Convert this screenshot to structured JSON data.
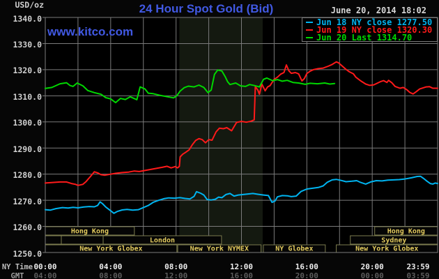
{
  "page": {
    "unit": "USD/oz",
    "title": "24 Hour Spot Gold (Bid)",
    "datetime": "June 20, 2014 18:02",
    "watermark": "www.kitco.com",
    "ny_time_row_label": "NY Time",
    "gmt_row_label": "GMT"
  },
  "legend": {
    "items": [
      {
        "label": "Jun 18 NY close 1277.50",
        "color": "#00b4f0"
      },
      {
        "label": "Jun 19 NY close 1320.30",
        "color": "#ff1a1a"
      },
      {
        "label": "Jun 20 Last 1314.70",
        "color": "#00d800"
      }
    ]
  },
  "colors": {
    "background": "#060606",
    "plot_background": "#000000",
    "grid": "#7b7b7b",
    "highlight_band": "#141910",
    "session_border": "#7c7c4e",
    "session_text": "#e3cb5e",
    "title_blue": "#4159e3",
    "axis_text": "#cfcfcf",
    "ny_tick_text": "#ededed",
    "gmt_tick_text": "#5c5c5c"
  },
  "chart_data": {
    "type": "line",
    "title": "24 Hour Spot Gold (Bid)",
    "ylabel": "USD/oz",
    "ylim": [
      1250,
      1340
    ],
    "y_tick_step": 10,
    "xlim_hours": [
      0,
      24
    ],
    "grid_hours_step": 2,
    "x_tick_hours": [
      0,
      4,
      8,
      12,
      16,
      20,
      23.98
    ],
    "x_ticks_ny_time": [
      "00:00",
      "04:00",
      "08:00",
      "12:00",
      "16:00",
      "20:00",
      "23:59"
    ],
    "x_ticks_gmt": [
      "04:00",
      "08:00",
      "12:00",
      "16:00",
      "20:00",
      "00:00",
      "03:59"
    ],
    "highlight_band_hours": [
      8.2,
      13.3
    ],
    "sessions": [
      {
        "row": 0,
        "start": 0,
        "end": 5.45,
        "label": "Hong Kong"
      },
      {
        "row": 0,
        "start": 20.15,
        "end": 24,
        "label": "Hong Kong"
      },
      {
        "row": 1,
        "start": 0,
        "end": 0.98,
        "label": ""
      },
      {
        "row": 1,
        "start": 0.98,
        "end": 3.54,
        "label": ""
      },
      {
        "row": 1,
        "start": 3.54,
        "end": 10.78,
        "label": "London"
      },
      {
        "row": 1,
        "start": 18.66,
        "end": 24,
        "label": "Sydney"
      },
      {
        "row": 2,
        "start": 0,
        "end": 8.05,
        "label": "New York Globex"
      },
      {
        "row": 2,
        "start": 8.1,
        "end": 13.2,
        "label": "New York NYMEX"
      },
      {
        "row": 2,
        "start": 13.34,
        "end": 17.13,
        "label": "NY Globex"
      },
      {
        "row": 2,
        "start": 17.8,
        "end": 24,
        "label": "New York Globex"
      }
    ],
    "series": [
      {
        "name": "Jun 18 NY close 1277.50",
        "color": "#00b4f0",
        "points": [
          [
            0,
            1266.4
          ],
          [
            0.3,
            1266.2
          ],
          [
            0.65,
            1266.8
          ],
          [
            1.05,
            1267.2
          ],
          [
            1.4,
            1267.0
          ],
          [
            1.7,
            1267.3
          ],
          [
            2.0,
            1267.1
          ],
          [
            2.35,
            1267.4
          ],
          [
            2.7,
            1267.6
          ],
          [
            3.0,
            1267.5
          ],
          [
            3.2,
            1268.0
          ],
          [
            3.35,
            1269.4
          ],
          [
            3.5,
            1268.7
          ],
          [
            3.7,
            1267.4
          ],
          [
            3.95,
            1266.2
          ],
          [
            4.2,
            1265.0
          ],
          [
            4.4,
            1265.7
          ],
          [
            4.7,
            1266.3
          ],
          [
            5.0,
            1266.5
          ],
          [
            5.35,
            1266.2
          ],
          [
            5.7,
            1266.4
          ],
          [
            6.0,
            1267.2
          ],
          [
            6.3,
            1268.0
          ],
          [
            6.6,
            1269.2
          ],
          [
            6.95,
            1270.0
          ],
          [
            7.25,
            1270.6
          ],
          [
            7.55,
            1270.9
          ],
          [
            7.9,
            1270.8
          ],
          [
            8.25,
            1271.0
          ],
          [
            8.55,
            1270.7
          ],
          [
            8.85,
            1270.5
          ],
          [
            9.1,
            1271.5
          ],
          [
            9.25,
            1273.3
          ],
          [
            9.5,
            1272.7
          ],
          [
            9.7,
            1272.0
          ],
          [
            9.9,
            1270.3
          ],
          [
            10.15,
            1270.1
          ],
          [
            10.4,
            1270.4
          ],
          [
            10.6,
            1271.2
          ],
          [
            10.8,
            1271.0
          ],
          [
            11.05,
            1272.2
          ],
          [
            11.3,
            1272.6
          ],
          [
            11.55,
            1271.6
          ],
          [
            11.8,
            1272.0
          ],
          [
            12.1,
            1272.2
          ],
          [
            12.4,
            1272.4
          ],
          [
            12.7,
            1272.6
          ],
          [
            13.0,
            1272.3
          ],
          [
            13.35,
            1272.0
          ],
          [
            13.65,
            1271.8
          ],
          [
            13.87,
            1269.2
          ],
          [
            14.05,
            1269.7
          ],
          [
            14.2,
            1271.3
          ],
          [
            14.5,
            1271.8
          ],
          [
            14.8,
            1271.7
          ],
          [
            15.05,
            1271.4
          ],
          [
            15.35,
            1271.6
          ],
          [
            15.65,
            1273.4
          ],
          [
            16.0,
            1274.3
          ],
          [
            16.35,
            1274.6
          ],
          [
            16.7,
            1274.9
          ],
          [
            17.0,
            1275.5
          ],
          [
            17.25,
            1276.9
          ],
          [
            17.55,
            1277.8
          ],
          [
            17.8,
            1278.0
          ],
          [
            18.1,
            1277.6
          ],
          [
            18.4,
            1277.1
          ],
          [
            18.75,
            1277.3
          ],
          [
            19.05,
            1277.5
          ],
          [
            19.3,
            1276.8
          ],
          [
            19.6,
            1276.2
          ],
          [
            19.9,
            1277.0
          ],
          [
            20.25,
            1277.5
          ],
          [
            20.6,
            1277.4
          ],
          [
            20.95,
            1277.7
          ],
          [
            21.3,
            1277.8
          ],
          [
            21.65,
            1277.9
          ],
          [
            21.95,
            1278.1
          ],
          [
            22.4,
            1278.6
          ],
          [
            22.75,
            1279.1
          ],
          [
            22.95,
            1279.2
          ],
          [
            23.15,
            1278.3
          ],
          [
            23.35,
            1277.3
          ],
          [
            23.55,
            1276.4
          ],
          [
            23.7,
            1276.2
          ],
          [
            23.85,
            1276.6
          ],
          [
            24,
            1276.4
          ]
        ]
      },
      {
        "name": "Jun 19 NY close 1320.30",
        "color": "#ff1a1a",
        "points": [
          [
            0,
            1276.6
          ],
          [
            0.45,
            1276.8
          ],
          [
            0.9,
            1277.0
          ],
          [
            1.3,
            1277.0
          ],
          [
            1.6,
            1276.4
          ],
          [
            1.85,
            1276.1
          ],
          [
            2.0,
            1275.7
          ],
          [
            2.3,
            1276.1
          ],
          [
            2.5,
            1277.2
          ],
          [
            2.75,
            1279.0
          ],
          [
            3.0,
            1280.9
          ],
          [
            3.2,
            1280.5
          ],
          [
            3.4,
            1279.8
          ],
          [
            3.65,
            1279.6
          ],
          [
            4.0,
            1280.0
          ],
          [
            4.3,
            1280.3
          ],
          [
            4.7,
            1280.6
          ],
          [
            5.1,
            1280.8
          ],
          [
            5.45,
            1281.2
          ],
          [
            5.75,
            1281.0
          ],
          [
            6.1,
            1281.4
          ],
          [
            6.45,
            1281.8
          ],
          [
            6.8,
            1282.2
          ],
          [
            7.15,
            1282.6
          ],
          [
            7.45,
            1283.0
          ],
          [
            7.7,
            1282.4
          ],
          [
            7.95,
            1282.9
          ],
          [
            8.1,
            1282.4
          ],
          [
            8.2,
            1283.0
          ],
          [
            8.25,
            1286.6
          ],
          [
            8.4,
            1287.6
          ],
          [
            8.6,
            1288.4
          ],
          [
            8.8,
            1289.3
          ],
          [
            9.0,
            1291.3
          ],
          [
            9.2,
            1292.9
          ],
          [
            9.4,
            1293.6
          ],
          [
            9.6,
            1293.2
          ],
          [
            9.8,
            1292.0
          ],
          [
            10.0,
            1293.2
          ],
          [
            10.2,
            1293.0
          ],
          [
            10.45,
            1296.2
          ],
          [
            10.65,
            1297.6
          ],
          [
            10.9,
            1297.4
          ],
          [
            11.1,
            1297.8
          ],
          [
            11.4,
            1296.6
          ],
          [
            11.7,
            1299.8
          ],
          [
            12.0,
            1300.2
          ],
          [
            12.3,
            1299.9
          ],
          [
            12.6,
            1300.3
          ],
          [
            12.78,
            1300.8
          ],
          [
            12.85,
            1313.5
          ],
          [
            13.0,
            1312.2
          ],
          [
            13.1,
            1310.6
          ],
          [
            13.25,
            1314.5
          ],
          [
            13.45,
            1311.9
          ],
          [
            13.6,
            1313.4
          ],
          [
            13.75,
            1313.9
          ],
          [
            14.0,
            1316.3
          ],
          [
            14.2,
            1317.1
          ],
          [
            14.4,
            1318.3
          ],
          [
            14.6,
            1318.9
          ],
          [
            14.75,
            1321.8
          ],
          [
            14.9,
            1319.6
          ],
          [
            15.05,
            1318.6
          ],
          [
            15.3,
            1318.9
          ],
          [
            15.5,
            1318.4
          ],
          [
            15.7,
            1315.7
          ],
          [
            15.85,
            1316.6
          ],
          [
            16.0,
            1318.5
          ],
          [
            16.2,
            1319.4
          ],
          [
            16.4,
            1320.0
          ],
          [
            16.7,
            1320.4
          ],
          [
            17.0,
            1320.6
          ],
          [
            17.3,
            1321.3
          ],
          [
            17.55,
            1322.0
          ],
          [
            17.8,
            1323.0
          ],
          [
            17.95,
            1322.6
          ],
          [
            18.2,
            1321.2
          ],
          [
            18.4,
            1320.1
          ],
          [
            18.6,
            1319.2
          ],
          [
            18.85,
            1318.4
          ],
          [
            19.0,
            1317.1
          ],
          [
            19.3,
            1315.7
          ],
          [
            19.6,
            1314.5
          ],
          [
            19.85,
            1314.0
          ],
          [
            20.1,
            1314.2
          ],
          [
            20.5,
            1315.4
          ],
          [
            20.7,
            1315.8
          ],
          [
            20.9,
            1315.1
          ],
          [
            21.0,
            1315.9
          ],
          [
            21.2,
            1315.0
          ],
          [
            21.4,
            1313.6
          ],
          [
            21.7,
            1312.9
          ],
          [
            21.9,
            1313.2
          ],
          [
            22.1,
            1312.4
          ],
          [
            22.3,
            1311.3
          ],
          [
            22.5,
            1310.7
          ],
          [
            22.7,
            1311.6
          ],
          [
            22.9,
            1312.6
          ],
          [
            23.1,
            1313.0
          ],
          [
            23.3,
            1313.4
          ],
          [
            23.5,
            1313.5
          ],
          [
            23.7,
            1312.9
          ],
          [
            24,
            1312.9
          ]
        ]
      },
      {
        "name": "Jun 20 Last 1314.70",
        "color": "#00d800",
        "points": [
          [
            0,
            1312.8
          ],
          [
            0.4,
            1313.2
          ],
          [
            0.9,
            1314.6
          ],
          [
            1.3,
            1315.0
          ],
          [
            1.5,
            1314.0
          ],
          [
            1.7,
            1313.6
          ],
          [
            1.95,
            1314.9
          ],
          [
            2.3,
            1313.8
          ],
          [
            2.6,
            1312.0
          ],
          [
            3.0,
            1311.2
          ],
          [
            3.4,
            1310.6
          ],
          [
            3.7,
            1309.3
          ],
          [
            4.0,
            1308.8
          ],
          [
            4.3,
            1307.4
          ],
          [
            4.6,
            1309.0
          ],
          [
            4.9,
            1308.6
          ],
          [
            5.2,
            1309.6
          ],
          [
            5.6,
            1308.5
          ],
          [
            5.8,
            1313.4
          ],
          [
            6.1,
            1312.6
          ],
          [
            6.3,
            1311.0
          ],
          [
            6.6,
            1310.8
          ],
          [
            7.0,
            1310.2
          ],
          [
            7.5,
            1309.6
          ],
          [
            7.85,
            1309.2
          ],
          [
            8.05,
            1310.0
          ],
          [
            8.25,
            1311.8
          ],
          [
            8.5,
            1313.1
          ],
          [
            8.75,
            1313.7
          ],
          [
            9.1,
            1313.4
          ],
          [
            9.4,
            1314.1
          ],
          [
            9.7,
            1313.2
          ],
          [
            9.95,
            1311.2
          ],
          [
            10.15,
            1312.2
          ],
          [
            10.35,
            1318.2
          ],
          [
            10.55,
            1319.9
          ],
          [
            10.8,
            1319.5
          ],
          [
            11.0,
            1317.4
          ],
          [
            11.15,
            1315.4
          ],
          [
            11.3,
            1314.3
          ],
          [
            11.65,
            1314.9
          ],
          [
            11.95,
            1313.8
          ],
          [
            12.25,
            1313.6
          ],
          [
            12.5,
            1314.3
          ],
          [
            12.8,
            1313.9
          ],
          [
            13.1,
            1313.4
          ],
          [
            13.35,
            1316.3
          ],
          [
            13.55,
            1316.8
          ],
          [
            13.9,
            1315.8
          ],
          [
            14.2,
            1316.2
          ],
          [
            14.5,
            1315.6
          ],
          [
            14.8,
            1315.9
          ],
          [
            15.15,
            1315.1
          ],
          [
            15.5,
            1314.9
          ],
          [
            15.9,
            1314.4
          ],
          [
            16.2,
            1314.8
          ],
          [
            16.65,
            1314.6
          ],
          [
            17.1,
            1314.9
          ],
          [
            17.4,
            1314.5
          ],
          [
            17.7,
            1314.7
          ]
        ]
      }
    ]
  }
}
